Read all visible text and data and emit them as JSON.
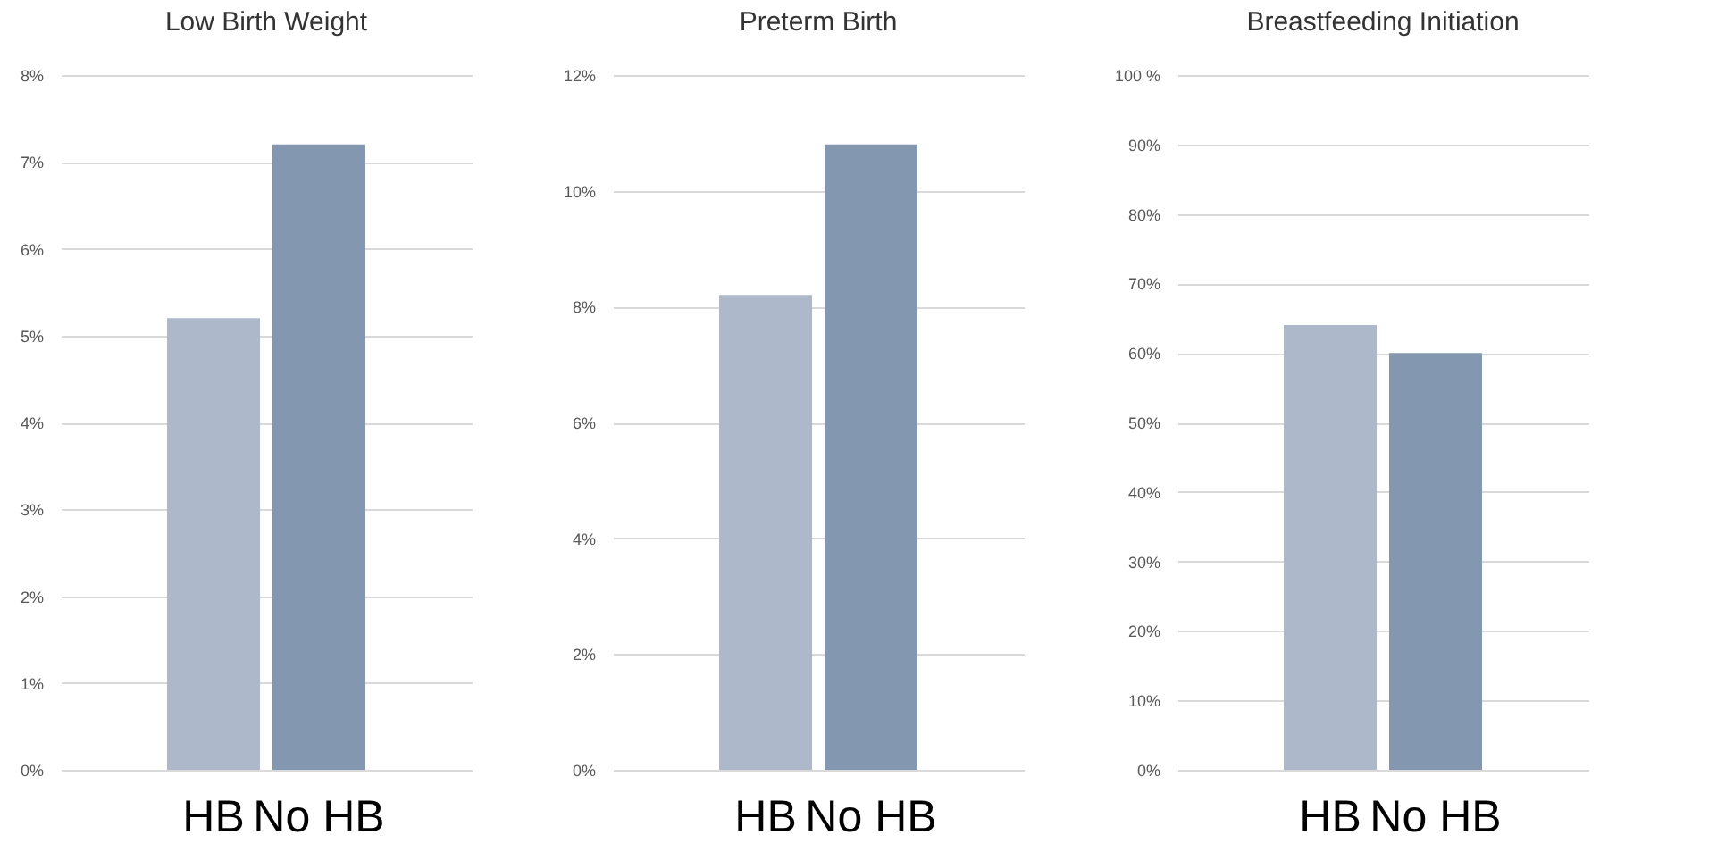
{
  "chart_data": [
    {
      "type": "bar",
      "title": "Low Birth Weight",
      "categories": [
        "HB",
        "No HB"
      ],
      "values": [
        5.2,
        7.2
      ],
      "colors": [
        "#adb9ca",
        "#8497b0"
      ],
      "ylim": [
        0,
        8
      ],
      "yticks": [
        {
          "value": 0,
          "label": "0%"
        },
        {
          "value": 1,
          "label": "1%"
        },
        {
          "value": 2,
          "label": "2%"
        },
        {
          "value": 3,
          "label": "3%"
        },
        {
          "value": 4,
          "label": "4%"
        },
        {
          "value": 5,
          "label": "5%"
        },
        {
          "value": 6,
          "label": "6%"
        },
        {
          "value": 7,
          "label": "7%"
        },
        {
          "value": 8,
          "label": "8%"
        }
      ],
      "grid": "y"
    },
    {
      "type": "bar",
      "title": "Preterm Birth",
      "categories": [
        "HB",
        "No HB"
      ],
      "values": [
        8.2,
        10.8
      ],
      "colors": [
        "#adb9ca",
        "#8497b0"
      ],
      "ylim": [
        0,
        12
      ],
      "yticks": [
        {
          "value": 0,
          "label": "0%"
        },
        {
          "value": 2,
          "label": "2%"
        },
        {
          "value": 4,
          "label": "4%"
        },
        {
          "value": 6,
          "label": "6%"
        },
        {
          "value": 8,
          "label": "8%"
        },
        {
          "value": 10,
          "label": "10%"
        },
        {
          "value": 12,
          "label": "12%"
        }
      ],
      "grid": "y"
    },
    {
      "type": "bar",
      "title": "Breastfeeding Initiation",
      "categories": [
        "HB",
        "No HB"
      ],
      "values": [
        64,
        60
      ],
      "colors": [
        "#adb9ca",
        "#8497b0"
      ],
      "ylim": [
        0,
        100
      ],
      "yticks": [
        {
          "value": 0,
          "label": "0%"
        },
        {
          "value": 10,
          "label": "10%"
        },
        {
          "value": 20,
          "label": "20%"
        },
        {
          "value": 30,
          "label": "30%"
        },
        {
          "value": 40,
          "label": "40%"
        },
        {
          "value": 50,
          "label": "50%"
        },
        {
          "value": 60,
          "label": "60%"
        },
        {
          "value": 70,
          "label": "70%"
        },
        {
          "value": 80,
          "label": "80%"
        },
        {
          "value": 90,
          "label": "90%"
        },
        {
          "value": 100,
          "label": "100 %"
        }
      ],
      "grid": "y"
    }
  ]
}
